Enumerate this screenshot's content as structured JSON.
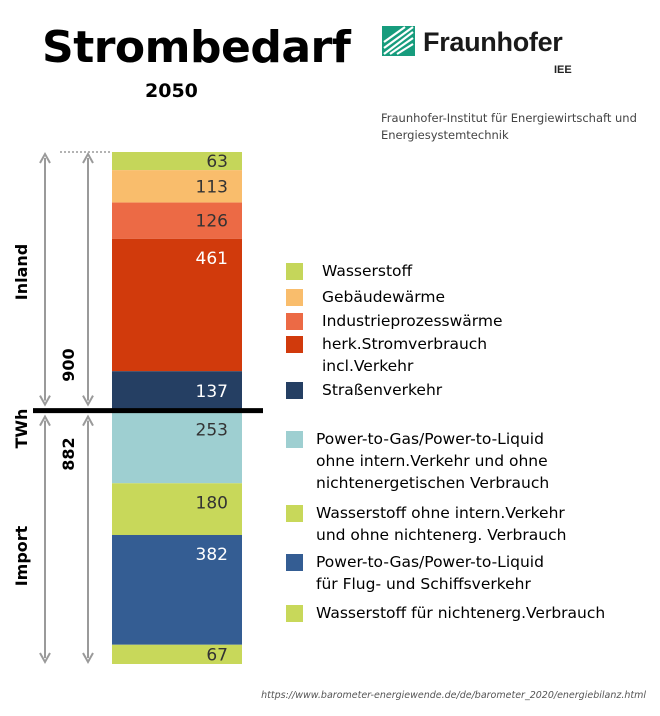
{
  "header": {
    "title": "Strombedarf",
    "subtitle": "2050"
  },
  "logo": {
    "name": "Fraunhofer",
    "sub": "IEE",
    "color": "#179c7d"
  },
  "institute": "Fraunhofer-Institut für Energiewirtschaft und Energiesystemtechnik",
  "source": "https://www.barometer-energiewende.de/de/barometer_2020/energiebilanz.html",
  "chart_data": {
    "type": "bar",
    "stacked": true,
    "unit": "TWh",
    "groups": [
      {
        "label": "Inland",
        "total": 900,
        "segments": [
          {
            "name": "Wasserstoff",
            "value": 63,
            "color": "#c5d65a"
          },
          {
            "name": "Gebäudewärme",
            "value": 113,
            "color": "#f9bd6c"
          },
          {
            "name": "Industrieprozesswärme",
            "value": 126,
            "color": "#ec6a45"
          },
          {
            "name": "herk.Stromverbrauch\nincl.Verkehr",
            "value": 461,
            "color": "#d13a0c"
          },
          {
            "name": "Straßenverkehr",
            "value": 137,
            "color": "#253f63"
          }
        ]
      },
      {
        "label": "Import",
        "total": 882,
        "segments": [
          {
            "name": "Power-to-Gas/Power-to-Liquid\nohne intern.Verkehr und ohne\nnichtenergetischen Verbrauch",
            "value": 253,
            "color": "#9ecfd1"
          },
          {
            "name": "Wasserstoff ohne intern.Verkehr\nund ohne nichtenerg. Verbrauch",
            "value": 180,
            "color": "#c8d85a"
          },
          {
            "name": "Power-to-Gas/Power-to-Liquid\nfür Flug- und Schiffsverkehr",
            "value": 382,
            "color": "#345d93"
          },
          {
            "name": "Wasserstoff für nichtenerg.Verbrauch",
            "value": 67,
            "color": "#c8d85a"
          }
        ]
      }
    ]
  }
}
